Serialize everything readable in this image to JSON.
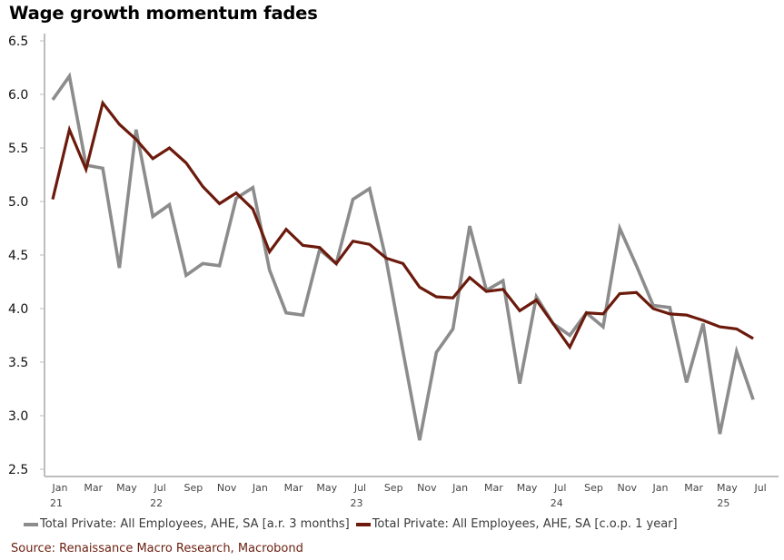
{
  "title": "Wage growth momentum fades",
  "source": "Source: Renaissance Macro Research, Macrobond",
  "colors": {
    "series_3m": "#8c8c8c",
    "series_1y": "#6b1a0c",
    "axis": "#bdbdbd",
    "source_text": "#6b1e0e"
  },
  "chart_data": {
    "type": "line",
    "title": "Wage growth momentum fades",
    "xlabel": "",
    "ylabel": "",
    "ylim": [
      2.5,
      6.5
    ],
    "yticks": [
      "6.5",
      "6.0",
      "5.5",
      "5.0",
      "4.5",
      "4.0",
      "3.5",
      "3.0",
      "2.5"
    ],
    "ytick_values": [
      6.5,
      6.0,
      5.5,
      5.0,
      4.5,
      4.0,
      3.5,
      3.0,
      2.5
    ],
    "xticks": [
      {
        "month": "Jan",
        "year": "21",
        "index": 0
      },
      {
        "month": "Mar",
        "year": "",
        "index": 2
      },
      {
        "month": "May",
        "year": "",
        "index": 4
      },
      {
        "month": "Jul",
        "year": "22",
        "index": 6
      },
      {
        "month": "Sep",
        "year": "",
        "index": 8
      },
      {
        "month": "Nov",
        "year": "",
        "index": 10
      },
      {
        "month": "Jan",
        "year": "",
        "index": 12
      },
      {
        "month": "Mar",
        "year": "",
        "index": 14
      },
      {
        "month": "May",
        "year": "",
        "index": 16
      },
      {
        "month": "Jul",
        "year": "23",
        "index": 18
      },
      {
        "month": "Sep",
        "year": "",
        "index": 20
      },
      {
        "month": "Nov",
        "year": "",
        "index": 22
      },
      {
        "month": "Jan",
        "year": "",
        "index": 24
      },
      {
        "month": "Mar",
        "year": "",
        "index": 26
      },
      {
        "month": "May",
        "year": "",
        "index": 28
      },
      {
        "month": "Jul",
        "year": "24",
        "index": 30
      },
      {
        "month": "Sep",
        "year": "",
        "index": 32
      },
      {
        "month": "Nov",
        "year": "",
        "index": 34
      },
      {
        "month": "Jan",
        "year": "",
        "index": 36
      },
      {
        "month": "Mar",
        "year": "",
        "index": 38
      },
      {
        "month": "May",
        "year": "25",
        "index": 40
      },
      {
        "month": "Jul",
        "year": "",
        "index": 42
      }
    ],
    "grid": false,
    "legend_position": "bottom",
    "series": [
      {
        "name": "Total Private: All Employees, AHE, SA [a.r. 3 months]",
        "color": "#8c8c8c",
        "values": [
          5.95,
          6.17,
          5.34,
          5.31,
          4.38,
          5.67,
          4.86,
          4.97,
          4.31,
          4.42,
          4.4,
          5.03,
          5.13,
          4.36,
          3.96,
          3.94,
          4.55,
          4.42,
          5.02,
          5.12,
          4.45,
          3.6,
          2.77,
          3.59,
          3.81,
          4.77,
          4.17,
          4.26,
          3.3,
          4.11,
          3.86,
          3.75,
          3.96,
          3.83,
          4.75,
          4.4,
          4.03,
          4.01,
          3.31,
          3.86,
          2.83,
          3.6,
          3.15
        ]
      },
      {
        "name": "Total Private: All Employees, AHE, SA [c.o.p. 1 year]",
        "color": "#6b1a0c",
        "values": [
          5.02,
          5.67,
          5.3,
          5.92,
          5.72,
          5.58,
          5.4,
          5.5,
          5.36,
          5.14,
          4.98,
          5.08,
          4.93,
          4.53,
          4.74,
          4.59,
          4.57,
          4.42,
          4.63,
          4.6,
          4.47,
          4.42,
          4.2,
          4.11,
          4.1,
          4.29,
          4.16,
          4.18,
          3.98,
          4.08,
          3.86,
          3.64,
          3.96,
          3.95,
          4.14,
          4.15,
          4.0,
          3.95,
          3.94,
          3.89,
          3.83,
          3.81,
          3.72
        ]
      }
    ]
  }
}
